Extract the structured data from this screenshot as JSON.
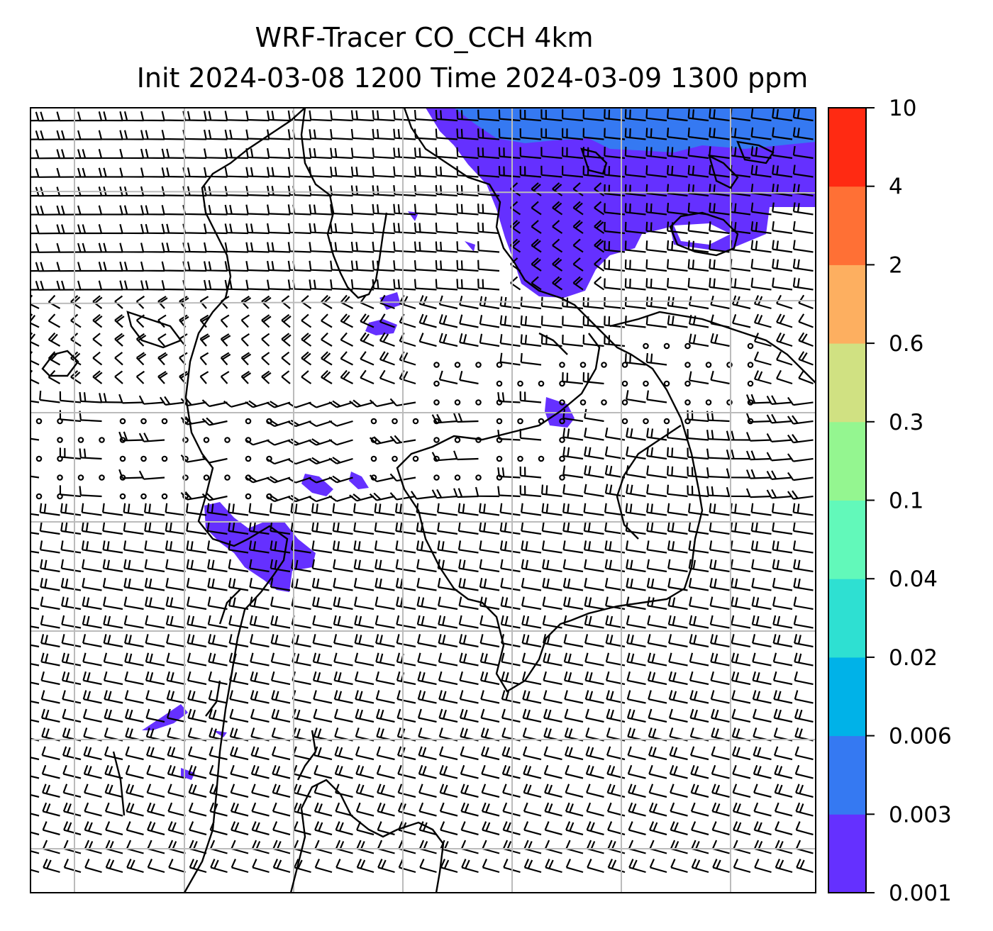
{
  "title": {
    "line1": "WRF-Tracer CO_CCH 4km",
    "line2": "Init 2024-03-08 1200 Time 2024-03-09 1300 ppm"
  },
  "colorbar": {
    "levels": [
      "0.001",
      "0.003",
      "0.006",
      "0.02",
      "0.04",
      "0.1",
      "0.3",
      "0.6",
      "2",
      "4",
      "10"
    ],
    "colors": [
      "#6530ff",
      "#3579f2",
      "#00b2e8",
      "#2ee0d2",
      "#62f9ba",
      "#94f690",
      "#d0e182",
      "#fdaf60",
      "#ff7035",
      "#ff2a12"
    ]
  },
  "map": {
    "background": "#ffffff",
    "tracer_color": "#6530ff",
    "tracer_color_2": "#3579f2",
    "grid_color": "#bbbbbb",
    "line_color": "#000000",
    "layers": [
      "wind-barbs",
      "gridlines",
      "coastlines",
      "tracer-fill"
    ]
  }
}
